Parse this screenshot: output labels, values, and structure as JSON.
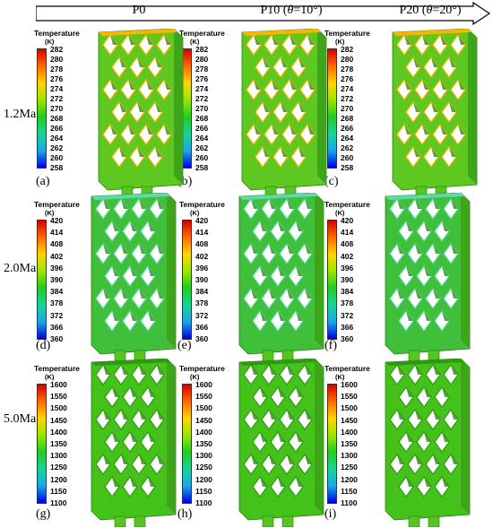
{
  "columns": [
    "P0",
    "P10 (θ=10°)",
    "P20 (θ=20°)"
  ],
  "rows": [
    {
      "label": "1.2Ma",
      "legend_title": "Temperature",
      "legend_unit": "(K)",
      "ticks": [
        "282",
        "280",
        "278",
        "276",
        "274",
        "272",
        "270",
        "268",
        "266",
        "264",
        "262",
        "260",
        "258"
      ],
      "panels": [
        "(a)",
        "(b)",
        "(c)"
      ]
    },
    {
      "label": "2.0Ma",
      "legend_title": "Temperature",
      "legend_unit": "(K)",
      "ticks": [
        "420",
        "414",
        "408",
        "402",
        "396",
        "390",
        "384",
        "378",
        "372",
        "366",
        "360"
      ],
      "panels": [
        "(d)",
        "(e)",
        "(f)"
      ]
    },
    {
      "label": "5.0Ma",
      "legend_title": "Temperature",
      "legend_unit": "(K)",
      "ticks": [
        "1600",
        "1550",
        "1500",
        "1450",
        "1400",
        "1350",
        "1300",
        "1250",
        "1200",
        "1150",
        "1100"
      ],
      "panels": [
        "(g)",
        "(h)",
        "(i)"
      ]
    }
  ],
  "colors": {
    "colorbar": [
      "#d40000",
      "#ff6a00",
      "#ffd500",
      "#9be600",
      "#22cc22",
      "#19d39a",
      "#1aa7e6",
      "#0000e0"
    ],
    "row1_face": "#5ec821",
    "row1_edge": "#ffb400",
    "row2_face": "#3fbf3a",
    "row2_edge": "#5ed9a8",
    "row3_face": "#44c21a",
    "row3_edge": "#2e9a12"
  }
}
